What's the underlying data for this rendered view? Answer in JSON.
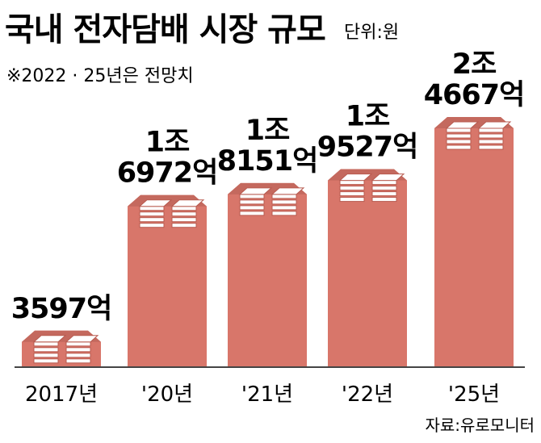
{
  "colors": {
    "bar": "#D8766A",
    "bar_dark": "#B85A4F",
    "bar_side": "#C4695E",
    "axis": "#444444"
  },
  "chart_data": {
    "type": "bar",
    "title": "국내 전자담배 시장 규모",
    "unit": "단위:원",
    "note": "※2022 · 25년은 전망치",
    "source": "자료:유로모니터",
    "categories": [
      "2017년",
      "'20년",
      "'21년",
      "'22년",
      "'25년"
    ],
    "values": [
      3597,
      16972,
      18151,
      19527,
      24667
    ],
    "value_unit": "억원",
    "labels": [
      [
        "3597억"
      ],
      [
        "1조",
        "6972억"
      ],
      [
        "1조",
        "8151억"
      ],
      [
        "1조",
        "9527억"
      ],
      [
        "2조",
        "4667억"
      ]
    ]
  }
}
